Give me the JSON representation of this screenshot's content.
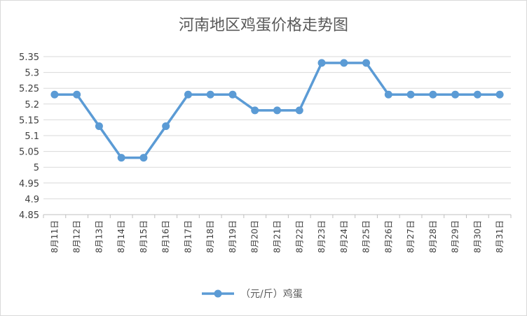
{
  "chart_data": {
    "type": "line",
    "title": "河南地区鸡蛋价格走势图",
    "categories": [
      "8月11日",
      "8月12日",
      "8月13日",
      "8月14日",
      "8月15日",
      "8月16日",
      "8月17日",
      "8月18日",
      "8月19日",
      "8月20日",
      "8月21日",
      "8月22日",
      "8月23日",
      "8月24日",
      "8月25日",
      "8月26日",
      "8月27日",
      "8月28日",
      "8月29日",
      "8月30日",
      "8月31日"
    ],
    "series": [
      {
        "name": "（元/斤）鸡蛋",
        "color": "#5b9bd5",
        "values": [
          5.23,
          5.23,
          5.13,
          5.03,
          5.03,
          5.13,
          5.23,
          5.23,
          5.23,
          5.18,
          5.18,
          5.18,
          5.33,
          5.33,
          5.33,
          5.23,
          5.23,
          5.23,
          5.23,
          5.23,
          5.23
        ]
      }
    ],
    "ylim": [
      4.85,
      5.35
    ],
    "yticks": [
      "4.85",
      "4.9",
      "4.95",
      "5",
      "5.05",
      "5.1",
      "5.15",
      "5.2",
      "5.25",
      "5.3",
      "5.35"
    ],
    "grid": true,
    "legend": "bottom",
    "xlabel": "",
    "ylabel": ""
  }
}
